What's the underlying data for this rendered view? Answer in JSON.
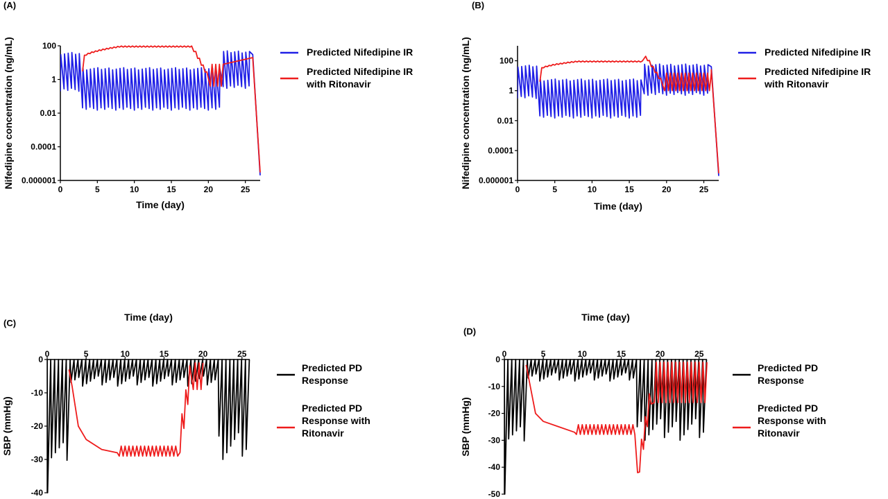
{
  "colors": {
    "blue": "#1f1fe6",
    "red": "#ee1c1c",
    "black": "#000000"
  },
  "chart_data": [
    {
      "panel": "(A)",
      "type": "line",
      "xlabel": "Time (day)",
      "ylabel": "Nifedipine concentration (ng/mL)",
      "xlim": [
        0,
        27
      ],
      "ylim": [
        1e-06,
        100
      ],
      "yscale": "log",
      "xticks": [
        "0",
        "5",
        "10",
        "15",
        "20",
        "25"
      ],
      "yticks": [
        "0.000001",
        "0.0001",
        "0.01",
        "1",
        "100"
      ],
      "legend": "right",
      "series": [
        {
          "name": "Predicted Nifedipine IR",
          "color": "blue",
          "kind": "pk",
          "baseline_segments": [
            {
              "from": 0,
              "to": 3,
              "peak": 40,
              "trough": 0.2
            },
            {
              "from": 3,
              "to": 22,
              "peak": 5,
              "trough": 0.015
            },
            {
              "from": 22,
              "to": 26,
              "peak": 50,
              "trough": 0.3
            }
          ],
          "doses_per_day": 2,
          "terminal": {
            "start_day": 26,
            "start_value": 30,
            "end_day": 27,
            "end_value": 2e-06
          }
        },
        {
          "name": "Predicted Nifedipine IR with Ritonavir",
          "color": "red",
          "kind": "inhibited_pk",
          "start_day": 3,
          "start_value": 3,
          "plateau": 90,
          "plateau_start": 8,
          "plateau_end": 17.8,
          "fall_end_day": 20,
          "fall_end_value": 1.5,
          "ripple": 0.15,
          "post_peak": 8,
          "post_trough": 0.4,
          "post_end_day": 22,
          "terminal": {
            "start_day": 26,
            "start_value": 20,
            "end_day": 27,
            "end_value": 3e-06
          }
        }
      ]
    },
    {
      "panel": "(B)",
      "type": "line",
      "xlabel": "Time (day)",
      "ylabel": "Nifedipine concentration (ng/mL)",
      "xlim": [
        0,
        27
      ],
      "ylim": [
        1e-06,
        1000
      ],
      "yscale": "log",
      "xticks": [
        "0",
        "5",
        "10",
        "15",
        "20",
        "25"
      ],
      "yticks": [
        "0.000001",
        "0.0001",
        "0.01",
        "1",
        "100"
      ],
      "legend": "right",
      "series": [
        {
          "name": "Predicted Nifedipine IR",
          "color": "blue",
          "kind": "pk",
          "baseline_segments": [
            {
              "from": 0,
              "to": 3,
              "peak": 50,
              "trough": 0.3
            },
            {
              "from": 3,
              "to": 17,
              "peak": 6,
              "trough": 0.015
            },
            {
              "from": 17,
              "to": 26,
              "peak": 60,
              "trough": 0.5
            }
          ],
          "doses_per_day": 2,
          "terminal": {
            "start_day": 26,
            "start_value": 40,
            "end_day": 27,
            "end_value": 2e-06
          }
        },
        {
          "name": "Predicted Nifedipine IR with Ritonavir",
          "color": "red",
          "kind": "inhibited_pk",
          "start_day": 3,
          "start_value": 4,
          "plateau": 90,
          "plateau_start": 8,
          "plateau_end": 16.8,
          "spike_day": 17.2,
          "spike_value": 200,
          "fall_end_day": 19.5,
          "fall_end_value": 3,
          "ripple": 0.15,
          "post_peak": 15,
          "post_trough": 1,
          "post_end_day": 26,
          "terminal": {
            "start_day": 26,
            "start_value": 25,
            "end_day": 27,
            "end_value": 3e-06
          }
        }
      ]
    },
    {
      "panel": "(C)",
      "type": "line",
      "xlabel": "Time (day)",
      "xlabel_position": "top",
      "ylabel": "SBP (mmHg)",
      "xlim": [
        0,
        26
      ],
      "ylim": [
        -40,
        0
      ],
      "xticks": [
        "0",
        "5",
        "10",
        "15",
        "20",
        "25"
      ],
      "yticks": [
        "0",
        "-10",
        "-20",
        "-30",
        "-40"
      ],
      "legend": "right",
      "series": [
        {
          "name": "Predicted PD Response",
          "color": "black",
          "kind": "pd",
          "doses_per_day": 2,
          "drop_segments": [
            {
              "from": 0,
              "to": 3,
              "min": -31,
              "var": 6
            },
            {
              "from": 3,
              "to": 22,
              "min": -8,
              "var": 3
            },
            {
              "from": 22,
              "to": 26,
              "min": -30,
              "var": 8
            }
          ],
          "first_drop": -40
        },
        {
          "name": "Predicted PD Response with Ritonavir",
          "color": "red",
          "kind": "inhibited_pd",
          "start_day": 2.8,
          "descent": [
            [
              2.8,
              -3
            ],
            [
              3.2,
              -8
            ],
            [
              4,
              -20
            ],
            [
              5,
              -24
            ],
            [
              7,
              -27
            ],
            [
              9,
              -28
            ]
          ],
          "plateau": -27.5,
          "plateau_end": 16.8,
          "ripple": 1.5,
          "recovery_day": 18.5,
          "recovery_value": -3,
          "post_until": 20
        }
      ]
    },
    {
      "panel": "(D)",
      "type": "line",
      "xlabel": "Time (day)",
      "xlabel_position": "top",
      "ylabel": "SBP (mmHg)",
      "xlim": [
        0,
        26
      ],
      "ylim": [
        -50,
        0
      ],
      "xticks": [
        "0",
        "5",
        "10",
        "15",
        "20",
        "25"
      ],
      "yticks": [
        "0",
        "-10",
        "-20",
        "-30",
        "-40",
        "-50"
      ],
      "legend": "right",
      "series": [
        {
          "name": "Predicted PD Response",
          "color": "black",
          "kind": "pd",
          "doses_per_day": 2,
          "drop_segments": [
            {
              "from": 0,
              "to": 3,
              "min": -31,
              "var": 6
            },
            {
              "from": 3,
              "to": 17,
              "min": -8,
              "var": 3
            },
            {
              "from": 17,
              "to": 26,
              "min": -30,
              "var": 8
            }
          ],
          "first_drop": -50
        },
        {
          "name": "Predicted PD Response with Ritonavir",
          "color": "red",
          "kind": "inhibited_pd",
          "start_day": 2.8,
          "descent": [
            [
              2.8,
              -2
            ],
            [
              3.2,
              -8
            ],
            [
              4,
              -20
            ],
            [
              5,
              -23
            ],
            [
              7,
              -25
            ],
            [
              9,
              -27
            ]
          ],
          "plateau": -26,
          "plateau_end": 16.8,
          "ripple": 1.8,
          "spike_day": 17.1,
          "spike_value": -42,
          "recovery_day": 19,
          "recovery_value": -10,
          "post_until": 26
        }
      ]
    }
  ]
}
